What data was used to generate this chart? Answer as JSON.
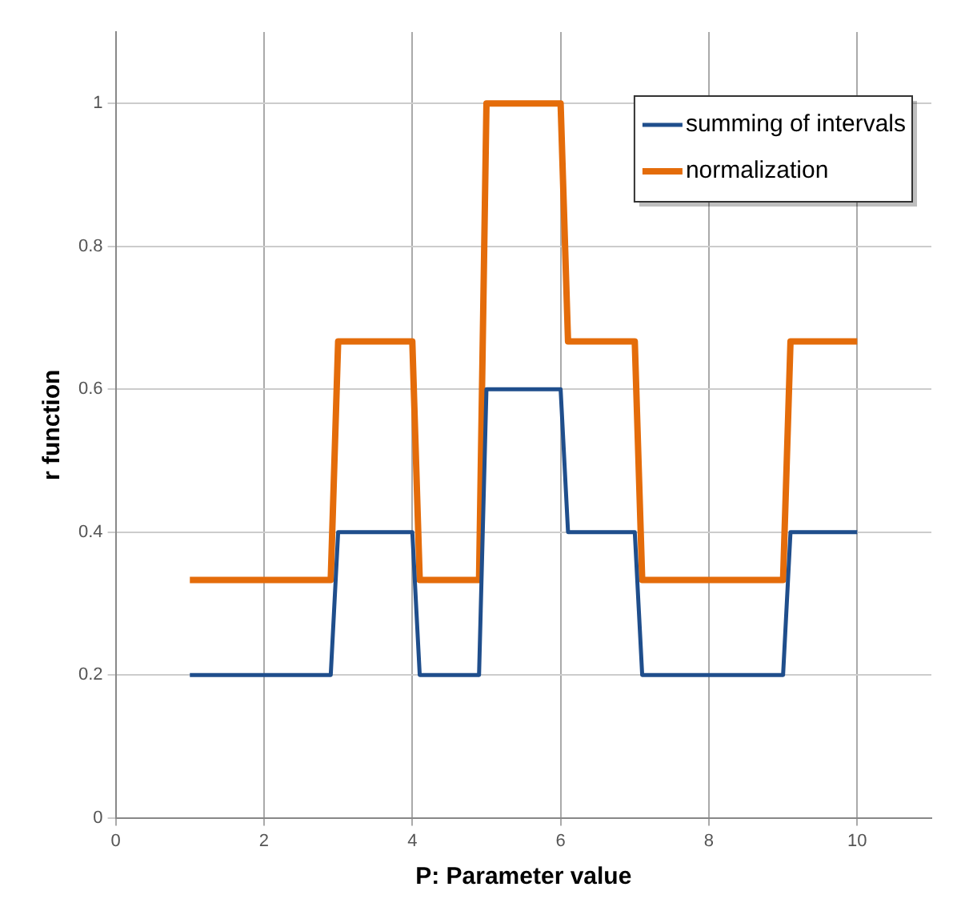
{
  "chart_data": {
    "type": "line",
    "xlabel": "P: Parameter value",
    "ylabel": "r function",
    "xlim": [
      0,
      11
    ],
    "xticks": [
      0,
      2,
      4,
      6,
      8,
      10
    ],
    "ylim": [
      0,
      1.1
    ],
    "yticks": [
      0,
      0.2,
      0.4,
      0.6,
      0.8,
      1
    ],
    "grid": true,
    "legend": "top right",
    "marker": "none",
    "line_style": "solid",
    "series": [
      {
        "name": "summing of intervals",
        "color": "#1f4e8c",
        "x": [
          1,
          2.9,
          3,
          4,
          4.1,
          4.9,
          5,
          6,
          6.1,
          7,
          7.1,
          9,
          9.1,
          10
        ],
        "values": [
          0.2,
          0.2,
          0.4,
          0.4,
          0.2,
          0.2,
          0.6,
          0.6,
          0.4,
          0.4,
          0.2,
          0.2,
          0.4,
          0.4
        ]
      },
      {
        "name": "normalization",
        "color": "#e46c0a",
        "x": [
          1,
          2.9,
          3,
          4,
          4.1,
          4.9,
          5,
          6,
          6.1,
          7,
          7.1,
          9,
          9.1,
          10
        ],
        "values": [
          0.333,
          0.333,
          0.667,
          0.667,
          0.333,
          0.333,
          1,
          1,
          0.667,
          0.667,
          0.333,
          0.333,
          0.667,
          0.667
        ]
      }
    ]
  }
}
